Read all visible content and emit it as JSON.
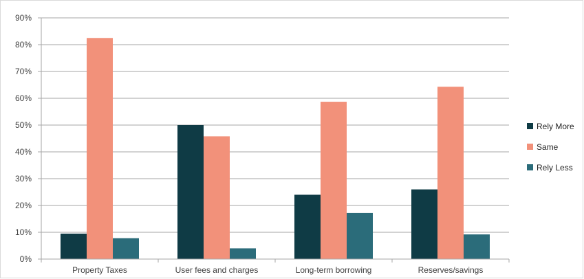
{
  "chart_data": {
    "type": "bar",
    "categories": [
      "Property Taxes",
      "User fees and charges",
      "Long-term borrowing",
      "Reserves/savings"
    ],
    "series": [
      {
        "name": "Rely More",
        "values": [
          9.5,
          50,
          24,
          26
        ],
        "color": "#0f3b45"
      },
      {
        "name": "Same",
        "values": [
          82.5,
          45.8,
          58.7,
          64.3
        ],
        "color": "#f2917a"
      },
      {
        "name": "Rely Less",
        "values": [
          7.8,
          4,
          17.2,
          9.2
        ],
        "color": "#2b6c7a"
      }
    ],
    "ylim": [
      0,
      90
    ],
    "yticks": [
      "0%",
      "10%",
      "20%",
      "30%",
      "40%",
      "50%",
      "60%",
      "70%",
      "80%",
      "90%"
    ],
    "ytick_values": [
      0,
      10,
      20,
      30,
      40,
      50,
      60,
      70,
      80,
      90
    ],
    "grid": true,
    "legend_position": "right",
    "title": "",
    "xlabel": "",
    "ylabel": ""
  }
}
